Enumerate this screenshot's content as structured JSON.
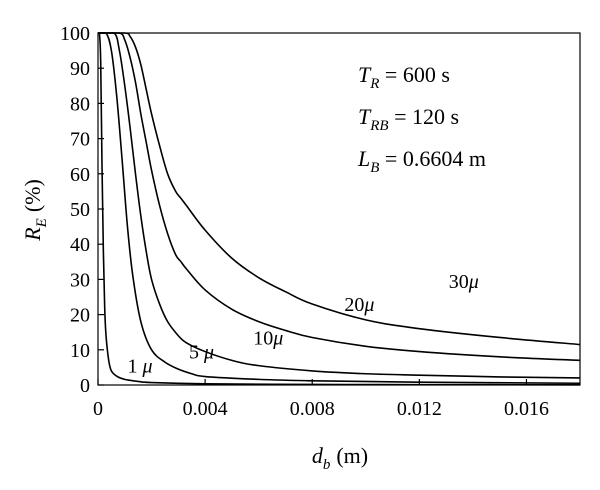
{
  "chart_data": {
    "type": "line",
    "xlabel": "d",
    "xlabel_sub": "b",
    "xlabel_unit": "(m)",
    "ylabel": "R",
    "ylabel_sub": "E",
    "ylabel_unit": "(%)",
    "xlim": [
      0,
      0.018
    ],
    "ylim": [
      0,
      100
    ],
    "x_ticks": [
      0,
      0.004,
      0.008,
      0.012,
      0.016
    ],
    "x_tick_labels": [
      "0",
      "0.004",
      "0.008",
      "0.012",
      "0.016"
    ],
    "y_ticks": [
      0,
      10,
      20,
      30,
      40,
      50,
      60,
      70,
      80,
      90,
      100
    ],
    "y_tick_labels": [
      "0",
      "10",
      "20",
      "30",
      "40",
      "50",
      "60",
      "70",
      "80",
      "90",
      "100"
    ],
    "grid": false,
    "legend": "none",
    "annotations": [
      {
        "sym": "T",
        "sub": "R",
        "rest": " = 600 s"
      },
      {
        "sym": "T",
        "sub": "RB",
        "rest": " = 120 s"
      },
      {
        "sym": "L",
        "sub": "B",
        "rest": " = 0.6604 m"
      }
    ],
    "series": [
      {
        "name": "1μ",
        "x": [
          0,
          5e-05,
          0.0001,
          0.00015,
          0.0002,
          0.00025,
          0.0003,
          0.0004,
          0.0005,
          0.0007,
          0.001,
          0.0015,
          0.002,
          0.004,
          0.008,
          0.012,
          0.018
        ],
        "y": [
          100,
          100,
          92,
          62,
          38,
          22,
          14,
          7,
          4,
          2.5,
          1.6,
          1.0,
          0.7,
          0.35,
          0.15,
          0.1,
          0.05
        ]
      },
      {
        "name": "5μ",
        "x": [
          0,
          0.0003,
          0.0005,
          0.0007,
          0.0009,
          0.0011,
          0.0013,
          0.0016,
          0.002,
          0.0025,
          0.003,
          0.0035,
          0.004,
          0.006,
          0.008,
          0.012,
          0.018
        ],
        "y": [
          100,
          100,
          95,
          82,
          64,
          45,
          31,
          18,
          10,
          6.5,
          4.5,
          3.2,
          2.4,
          1.6,
          1.2,
          0.8,
          0.5
        ]
      },
      {
        "name": "10μ",
        "x": [
          0,
          0.0006,
          0.0008,
          0.001,
          0.0012,
          0.0014,
          0.0016,
          0.0018,
          0.002,
          0.0023,
          0.0026,
          0.003,
          0.0033,
          0.004,
          0.005,
          0.006,
          0.008,
          0.01,
          0.012,
          0.015,
          0.018
        ],
        "y": [
          100,
          100,
          95,
          85,
          73,
          60,
          48,
          38,
          30,
          23,
          18,
          14,
          12,
          9.5,
          7,
          5.5,
          4,
          3.2,
          2.8,
          2.3,
          2.0
        ]
      },
      {
        "name": "20μ",
        "x": [
          0,
          0.0008,
          0.001,
          0.0012,
          0.0014,
          0.0016,
          0.0018,
          0.002,
          0.0023,
          0.0026,
          0.0029,
          0.0031,
          0.0033,
          0.004,
          0.005,
          0.006,
          0.007,
          0.008,
          0.01,
          0.012,
          0.015,
          0.018
        ],
        "y": [
          100,
          100,
          98,
          93,
          86,
          77,
          69,
          61,
          51,
          43,
          37,
          35,
          33,
          27,
          21.5,
          18,
          15.5,
          13.5,
          11,
          9.5,
          8,
          7
        ]
      },
      {
        "name": "30μ",
        "x": [
          0,
          0.001,
          0.0012,
          0.0014,
          0.0016,
          0.0018,
          0.002,
          0.0023,
          0.0026,
          0.0029,
          0.0031,
          0.0033,
          0.004,
          0.005,
          0.006,
          0.007,
          0.008,
          0.01,
          0.012,
          0.015,
          0.018
        ],
        "y": [
          100,
          100,
          99,
          96,
          91,
          84,
          77,
          68,
          60,
          55,
          53,
          51,
          44,
          36,
          30.5,
          26.5,
          23,
          18.5,
          16,
          13.5,
          11.5
        ]
      }
    ],
    "series_label_text": [
      {
        "base": "1 ",
        "mu": "μ",
        "x": 0.0011,
        "y": 3.5
      },
      {
        "base": "5 ",
        "mu": "μ",
        "x": 0.0034,
        "y": 7.5
      },
      {
        "base": "10",
        "mu": "μ",
        "x": 0.0058,
        "y": 11.5
      },
      {
        "base": "20",
        "mu": "μ",
        "x": 0.0092,
        "y": 21
      },
      {
        "base": "30",
        "mu": "μ",
        "x": 0.0131,
        "y": 27.5
      }
    ]
  }
}
